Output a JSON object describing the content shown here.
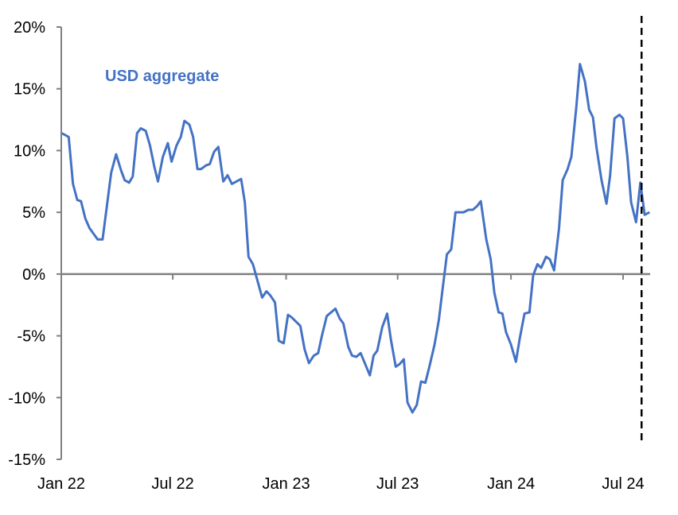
{
  "chart_data": {
    "type": "line",
    "title": "",
    "xlabel": "",
    "ylabel": "",
    "ylim": [
      -15,
      20
    ],
    "xlim": [
      "2022-01-01",
      "2024-08-15"
    ],
    "grid": false,
    "yticks": [
      -15,
      -10,
      -5,
      0,
      5,
      10,
      15,
      20
    ],
    "ytick_labels": [
      "-15%",
      "-10%",
      "-5%",
      "0%",
      "5%",
      "10%",
      "15%",
      "20%"
    ],
    "xticks": [
      "2022-01-01",
      "2022-07-01",
      "2023-01-01",
      "2023-07-01",
      "2024-01-01",
      "2024-07-01"
    ],
    "xtick_labels": [
      "Jan 22",
      "Jul 22",
      "Jan 23",
      "Jul 23",
      "Jan 24",
      "Jul 24"
    ],
    "annotation": "USD aggregate",
    "line_color": "#4472C4",
    "vertical_marker": {
      "x": "2024-07-31",
      "style": "dashed",
      "color": "#000000"
    },
    "series": [
      {
        "points": [
          [
            "2022-01-02",
            11.4
          ],
          [
            "2022-01-13",
            11.1
          ],
          [
            "2022-01-20",
            7.3
          ],
          [
            "2022-01-27",
            6.0
          ],
          [
            "2022-02-02",
            5.9
          ],
          [
            "2022-02-09",
            4.5
          ],
          [
            "2022-02-16",
            3.7
          ],
          [
            "2022-03-01",
            2.8
          ],
          [
            "2022-03-09",
            2.8
          ],
          [
            "2022-03-23",
            8.2
          ],
          [
            "2022-03-31",
            9.7
          ],
          [
            "2022-04-08",
            8.4
          ],
          [
            "2022-04-14",
            7.6
          ],
          [
            "2022-04-21",
            7.4
          ],
          [
            "2022-04-27",
            7.9
          ],
          [
            "2022-05-04",
            11.4
          ],
          [
            "2022-05-10",
            11.8
          ],
          [
            "2022-05-18",
            11.6
          ],
          [
            "2022-05-25",
            10.4
          ],
          [
            "2022-06-01",
            8.7
          ],
          [
            "2022-06-07",
            7.5
          ],
          [
            "2022-06-15",
            9.5
          ],
          [
            "2022-06-23",
            10.6
          ],
          [
            "2022-06-29",
            9.1
          ],
          [
            "2022-07-07",
            10.4
          ],
          [
            "2022-07-14",
            11.1
          ],
          [
            "2022-07-20",
            12.4
          ],
          [
            "2022-07-28",
            12.1
          ],
          [
            "2022-08-03",
            11.1
          ],
          [
            "2022-08-10",
            8.5
          ],
          [
            "2022-08-16",
            8.5
          ],
          [
            "2022-08-24",
            8.8
          ],
          [
            "2022-08-30",
            8.9
          ],
          [
            "2022-09-06",
            9.9
          ],
          [
            "2022-09-13",
            10.3
          ],
          [
            "2022-09-21",
            7.5
          ],
          [
            "2022-09-28",
            8.0
          ],
          [
            "2022-10-05",
            7.3
          ],
          [
            "2022-10-20",
            7.7
          ],
          [
            "2022-10-26",
            5.8
          ],
          [
            "2022-11-01",
            1.4
          ],
          [
            "2022-11-08",
            0.8
          ],
          [
            "2022-11-17",
            -0.8
          ],
          [
            "2022-11-23",
            -1.9
          ],
          [
            "2022-11-30",
            -1.4
          ],
          [
            "2022-12-06",
            -1.7
          ],
          [
            "2022-12-14",
            -2.3
          ],
          [
            "2022-12-20",
            -5.4
          ],
          [
            "2022-12-28",
            -5.6
          ],
          [
            "2023-01-04",
            -3.3
          ],
          [
            "2023-01-10",
            -3.5
          ],
          [
            "2023-01-24",
            -4.2
          ],
          [
            "2023-01-31",
            -6.1
          ],
          [
            "2023-02-07",
            -7.2
          ],
          [
            "2023-02-15",
            -6.6
          ],
          [
            "2023-02-22",
            -6.4
          ],
          [
            "2023-02-28",
            -5.0
          ],
          [
            "2023-03-08",
            -3.4
          ],
          [
            "2023-03-22",
            -2.8
          ],
          [
            "2023-03-29",
            -3.6
          ],
          [
            "2023-04-04",
            -4.0
          ],
          [
            "2023-04-12",
            -5.9
          ],
          [
            "2023-04-18",
            -6.6
          ],
          [
            "2023-04-25",
            -6.7
          ],
          [
            "2023-05-02",
            -6.4
          ],
          [
            "2023-05-17",
            -8.2
          ],
          [
            "2023-05-23",
            -6.6
          ],
          [
            "2023-05-29",
            -6.2
          ],
          [
            "2023-06-06",
            -4.3
          ],
          [
            "2023-06-14",
            -3.2
          ],
          [
            "2023-06-20",
            -5.3
          ],
          [
            "2023-06-28",
            -7.5
          ],
          [
            "2023-07-04",
            -7.3
          ],
          [
            "2023-07-11",
            -6.9
          ],
          [
            "2023-07-17",
            -10.4
          ],
          [
            "2023-07-25",
            -11.2
          ],
          [
            "2023-08-01",
            -10.6
          ],
          [
            "2023-08-08",
            -8.7
          ],
          [
            "2023-08-15",
            -8.8
          ],
          [
            "2023-08-21",
            -7.6
          ],
          [
            "2023-08-30",
            -5.7
          ],
          [
            "2023-09-06",
            -3.7
          ],
          [
            "2023-09-12",
            -1.2
          ],
          [
            "2023-09-19",
            1.6
          ],
          [
            "2023-09-26",
            2.0
          ],
          [
            "2023-10-03",
            5.0
          ],
          [
            "2023-10-09",
            5.0
          ],
          [
            "2023-10-16",
            5.0
          ],
          [
            "2023-10-24",
            5.2
          ],
          [
            "2023-10-31",
            5.2
          ],
          [
            "2023-11-07",
            5.5
          ],
          [
            "2023-11-13",
            5.9
          ],
          [
            "2023-11-22",
            2.8
          ],
          [
            "2023-11-29",
            1.2
          ],
          [
            "2023-12-05",
            -1.5
          ],
          [
            "2023-12-12",
            -3.1
          ],
          [
            "2023-12-18",
            -3.2
          ],
          [
            "2023-12-24",
            -4.7
          ],
          [
            "2024-01-01",
            -5.7
          ],
          [
            "2024-01-09",
            -7.1
          ],
          [
            "2024-01-15",
            -5.3
          ],
          [
            "2024-01-23",
            -3.2
          ],
          [
            "2024-01-31",
            -3.1
          ],
          [
            "2024-02-06",
            -0.1
          ],
          [
            "2024-02-13",
            0.8
          ],
          [
            "2024-02-19",
            0.5
          ],
          [
            "2024-02-27",
            1.4
          ],
          [
            "2024-03-04",
            1.2
          ],
          [
            "2024-03-11",
            0.3
          ],
          [
            "2024-03-19",
            3.7
          ],
          [
            "2024-03-25",
            7.6
          ],
          [
            "2024-04-02",
            8.5
          ],
          [
            "2024-04-08",
            9.5
          ],
          [
            "2024-04-16",
            13.5
          ],
          [
            "2024-04-22",
            17.0
          ],
          [
            "2024-04-30",
            15.6
          ],
          [
            "2024-05-07",
            13.3
          ],
          [
            "2024-05-13",
            12.7
          ],
          [
            "2024-05-19",
            10.2
          ],
          [
            "2024-05-27",
            7.6
          ],
          [
            "2024-06-04",
            5.7
          ],
          [
            "2024-06-10",
            8.0
          ],
          [
            "2024-06-17",
            12.6
          ],
          [
            "2024-06-25",
            12.9
          ],
          [
            "2024-07-01",
            12.6
          ],
          [
            "2024-07-08",
            9.5
          ],
          [
            "2024-07-14",
            5.8
          ],
          [
            "2024-07-22",
            4.2
          ],
          [
            "2024-07-29",
            7.4
          ],
          [
            "2024-08-05",
            4.8
          ],
          [
            "2024-08-13",
            5.0
          ]
        ]
      }
    ]
  }
}
